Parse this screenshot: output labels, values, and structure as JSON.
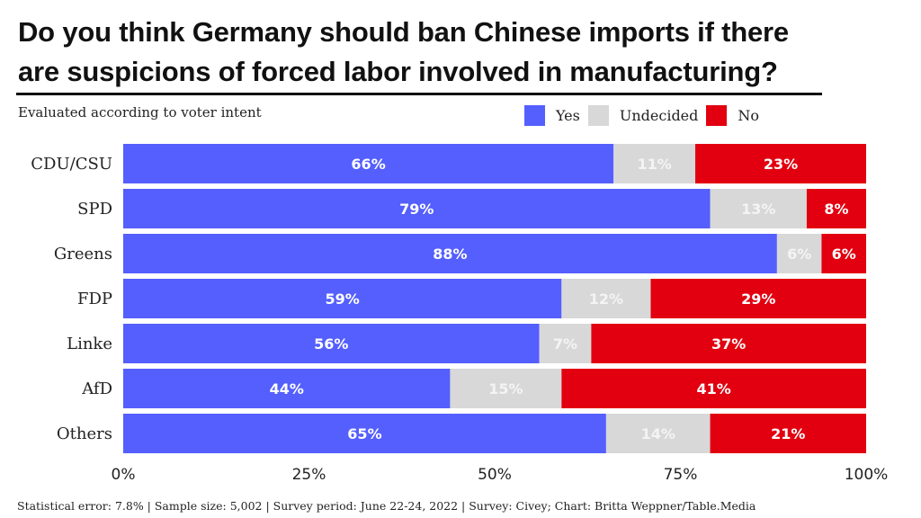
{
  "title": "Do you think Germany should ban Chinese imports if there are suspicions of forced labor involved in manufacturing?",
  "subtitle": "Evaluated according to voter intent",
  "footer": "Statistical error: 7.8% | Sample size: 5,002 | Survey period: June 22-24, 2022 | Survey: Civey; Chart: Britta Weppner/Table.Media",
  "legend": [
    {
      "label": "Yes",
      "color": "#545ffe"
    },
    {
      "label": "Undecided",
      "color": "#d8d8d8"
    },
    {
      "label": "No",
      "color": "#e20010"
    }
  ],
  "chart_data": {
    "type": "bar",
    "orientation": "horizontal",
    "stacked": true,
    "title": "Do you think Germany should ban Chinese imports if there are suspicions of forced labor involved in manufacturing?",
    "subtitle": "Evaluated according to voter intent",
    "categories": [
      "CDU/CSU",
      "SPD",
      "Greens",
      "FDP",
      "Linke",
      "AfD",
      "Others"
    ],
    "series": [
      {
        "name": "Yes",
        "color": "#545ffe",
        "label_color": "#ffffff",
        "values": [
          66,
          79,
          88,
          59,
          56,
          44,
          65
        ]
      },
      {
        "name": "Undecided",
        "color": "#d8d8d8",
        "label_color": "#f4f4f4",
        "values": [
          11,
          13,
          6,
          12,
          7,
          15,
          14
        ]
      },
      {
        "name": "No",
        "color": "#e20010",
        "label_color": "#ffffff",
        "values": [
          23,
          8,
          6,
          29,
          37,
          41,
          21
        ]
      }
    ],
    "xlim": [
      0,
      100
    ],
    "xticks": [
      0,
      25,
      50,
      75,
      100
    ],
    "xtick_labels": [
      "0%",
      "25%",
      "50%",
      "75%",
      "100%"
    ],
    "xlabel": "",
    "ylabel": "",
    "grid": false,
    "legend_position": "top-right",
    "value_suffix": "%"
  }
}
